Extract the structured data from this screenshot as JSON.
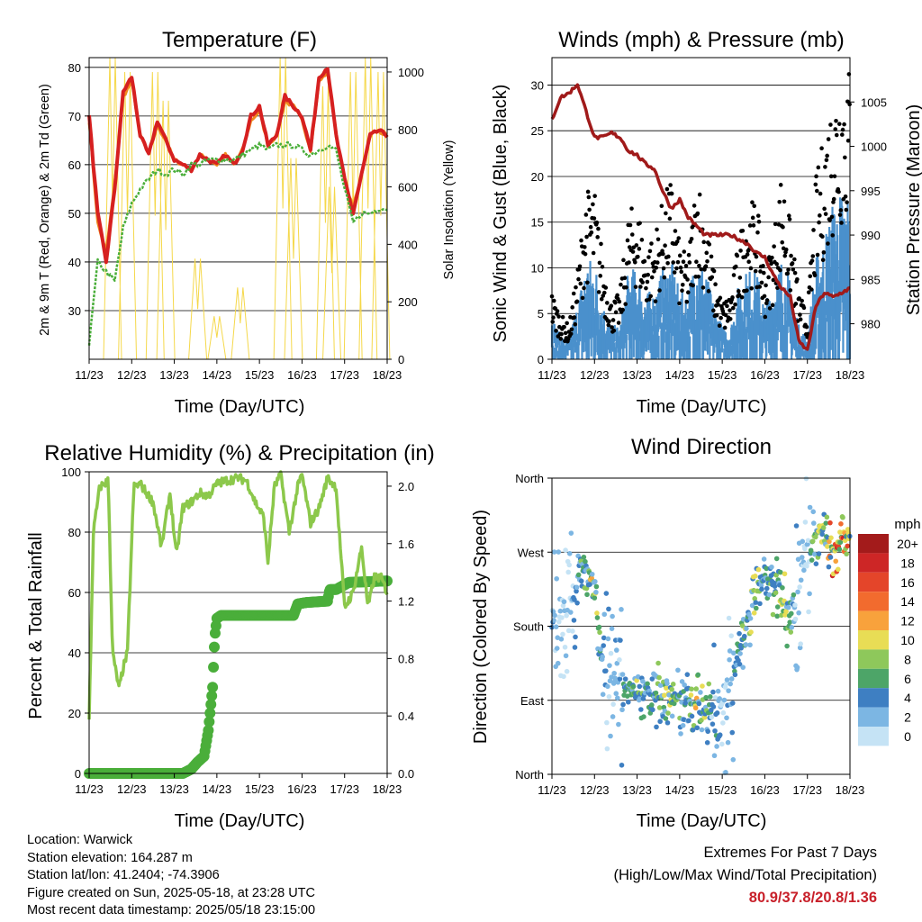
{
  "chart_data": [
    {
      "type": "line",
      "title": "Temperature (F)",
      "xlabel": "Time (Day/UTC)",
      "ylabel": "2m & 9m T (Red, Orange) & 2m Td (Green)",
      "ylabel_right": "Solar Insolation (Yellow)",
      "x_ticks": [
        "11/23",
        "12/23",
        "13/23",
        "14/23",
        "15/23",
        "16/23",
        "17/23",
        "18/23"
      ],
      "ylim": [
        20,
        82
      ],
      "y_ticks": [
        30,
        40,
        50,
        60,
        70,
        80
      ],
      "ylim_right": [
        0,
        1050
      ],
      "y_ticks_right": [
        0,
        200,
        400,
        600,
        800,
        1000
      ],
      "grid": true,
      "x_days": [
        0,
        0.2,
        0.4,
        0.6,
        0.8,
        1.0,
        1.2,
        1.4,
        1.6,
        1.8,
        2.0,
        2.2,
        2.4,
        2.6,
        2.8,
        3.0,
        3.2,
        3.4,
        3.6,
        3.8,
        4.0,
        4.2,
        4.4,
        4.6,
        4.8,
        5.0,
        5.2,
        5.4,
        5.6,
        5.8,
        6.0,
        6.2,
        6.4,
        6.6,
        6.8,
        7.0
      ],
      "series": [
        {
          "name": "2m T",
          "color": "#d62020",
          "values": [
            70,
            50,
            40,
            55,
            75,
            78,
            66,
            62,
            69,
            65,
            61,
            60,
            59,
            62,
            61,
            60,
            62,
            60,
            63,
            70,
            72,
            64,
            66,
            74,
            72,
            70,
            63,
            78,
            80,
            66,
            57,
            50,
            58,
            66,
            67,
            66
          ]
        },
        {
          "name": "9m T",
          "color": "#f08a1e",
          "values": [
            69,
            48,
            42,
            56,
            74,
            77,
            66,
            62,
            68,
            65,
            61,
            60,
            59,
            62,
            61,
            60,
            62,
            60,
            63,
            69,
            71,
            64,
            66,
            73,
            72,
            69,
            63,
            77,
            79,
            66,
            57,
            51,
            58,
            66,
            67,
            66
          ]
        },
        {
          "name": "2m Td",
          "color": "#4aae3a",
          "values": [
            23,
            40,
            38,
            36,
            47,
            52,
            55,
            57,
            59,
            58,
            59,
            58,
            60,
            60,
            61,
            61,
            61,
            61,
            62,
            63,
            64,
            63,
            64,
            64,
            64,
            63,
            62,
            63,
            64,
            63,
            55,
            48,
            50,
            50,
            51,
            51
          ]
        }
      ],
      "solar_series": {
        "name": "Solar Insolation",
        "color": "#f5d84a",
        "peaks": [
          [
            0.55,
            1050
          ],
          [
            0.9,
            1000
          ],
          [
            1.55,
            1000
          ],
          [
            1.8,
            900
          ],
          [
            2.55,
            350
          ],
          [
            3.0,
            150
          ],
          [
            3.55,
            250
          ],
          [
            4.55,
            1050
          ],
          [
            4.8,
            700
          ],
          [
            5.55,
            950
          ],
          [
            5.7,
            600
          ],
          [
            6.2,
            1000
          ],
          [
            6.55,
            1050
          ],
          [
            6.85,
            1000
          ]
        ]
      }
    },
    {
      "type": "scatter",
      "title": "Winds (mph) & Pressure (mb)",
      "xlabel": "Time (Day/UTC)",
      "ylabel": "Sonic Wind & Gust (Blue, Black)",
      "ylabel_right": "Station Pressure (Maroon)",
      "x_ticks": [
        "11/23",
        "12/23",
        "13/23",
        "14/23",
        "15/23",
        "16/23",
        "17/23",
        "18/23"
      ],
      "ylim": [
        0,
        33
      ],
      "y_ticks": [
        0,
        5,
        10,
        15,
        20,
        25,
        30
      ],
      "ylim_right": [
        976,
        1010
      ],
      "y_ticks_right": [
        980,
        985,
        990,
        995,
        1000,
        1005
      ],
      "grid": true,
      "x_days": [
        0,
        0.2,
        0.4,
        0.6,
        0.8,
        1.0,
        1.2,
        1.4,
        1.6,
        1.8,
        2.0,
        2.2,
        2.4,
        2.6,
        2.8,
        3.0,
        3.2,
        3.4,
        3.6,
        3.8,
        4.0,
        4.2,
        4.4,
        4.6,
        4.8,
        5.0,
        5.2,
        5.4,
        5.6,
        5.8,
        6.0,
        6.2,
        6.4,
        6.6,
        6.8,
        7.0
      ],
      "series": [
        {
          "name": "Sonic Wind",
          "color": "#4a90cc",
          "values": [
            4,
            2,
            2,
            5,
            9,
            9,
            5,
            3,
            3,
            8,
            8,
            6,
            6,
            8,
            9,
            6,
            6,
            10,
            8,
            5,
            3,
            3,
            7,
            8,
            8,
            5,
            7,
            9,
            7,
            3,
            2,
            9,
            11,
            14,
            15,
            15
          ]
        },
        {
          "name": "Gust",
          "color": "#000000",
          "values": [
            6,
            4,
            3,
            8,
            15,
            15,
            9,
            5,
            6,
            13,
            14,
            10,
            11,
            14,
            16,
            10,
            9,
            17,
            13,
            8,
            5,
            6,
            11,
            14,
            14,
            8,
            11,
            17,
            12,
            6,
            4,
            16,
            20,
            24,
            26,
            26
          ]
        },
        {
          "name": "Station Pressure",
          "color": "#a01a1a",
          "values": [
            1003,
            1005.5,
            1006,
            1007,
            1004,
            1001,
            1001,
            1001.5,
            1001,
            999.5,
            999,
            998,
            997.5,
            995,
            993,
            994,
            992,
            991,
            990,
            990,
            990,
            990,
            989.5,
            989,
            988,
            987.5,
            985.5,
            984,
            983,
            978,
            977,
            982,
            983.5,
            983,
            983.5,
            984
          ]
        }
      ]
    },
    {
      "type": "line",
      "title": "Relative Humidity (%) & Precipitation (in)",
      "xlabel": "Time (Day/UTC)",
      "ylabel": "Percent & Total Rainfall",
      "x_ticks": [
        "11/23",
        "12/23",
        "13/23",
        "14/23",
        "15/23",
        "16/23",
        "17/23",
        "18/23"
      ],
      "ylim": [
        0,
        100
      ],
      "y_ticks": [
        0,
        20,
        40,
        60,
        80,
        100
      ],
      "ylim_right": [
        0,
        2.1
      ],
      "y_ticks_right": [
        "0.0",
        "0.4",
        "0.8",
        "1.2",
        "1.6",
        "2.0"
      ],
      "grid": true,
      "x_days": [
        0,
        0.1,
        0.25,
        0.45,
        0.55,
        0.7,
        0.8,
        0.9,
        1.05,
        1.2,
        1.4,
        1.5,
        1.7,
        1.9,
        2.05,
        2.2,
        2.4,
        2.6,
        2.8,
        3.0,
        3.2,
        3.5,
        3.7,
        3.9,
        4.1,
        4.2,
        4.35,
        4.5,
        4.7,
        4.9,
        5.0,
        5.2,
        5.4,
        5.6,
        5.8,
        6.0,
        6.2,
        6.4,
        6.55,
        6.7,
        6.85,
        7.0
      ],
      "series": [
        {
          "name": "Relative Humidity",
          "color": "#8cc84b",
          "values": [
            17,
            80,
            95,
            97,
            40,
            28,
            35,
            40,
            95,
            96,
            92,
            90,
            75,
            93,
            72,
            88,
            90,
            93,
            92,
            96,
            97,
            98,
            97,
            90,
            85,
            70,
            95,
            99,
            80,
            95,
            99,
            83,
            88,
            98,
            95,
            55,
            60,
            75,
            55,
            65,
            65,
            60
          ]
        },
        {
          "name": "Total Rainfall",
          "color": "#4aae3a",
          "steps": [
            [
              0,
              0
            ],
            [
              2.2,
              0
            ],
            [
              2.4,
              0.03
            ],
            [
              2.55,
              0.08
            ],
            [
              2.7,
              0.12
            ],
            [
              2.8,
              0.3
            ],
            [
              2.9,
              0.6
            ],
            [
              2.95,
              0.95
            ],
            [
              3.0,
              1.08
            ],
            [
              3.1,
              1.1
            ],
            [
              4.8,
              1.1
            ],
            [
              4.9,
              1.18
            ],
            [
              5.1,
              1.19
            ],
            [
              5.6,
              1.2
            ],
            [
              5.65,
              1.28
            ],
            [
              5.8,
              1.28
            ],
            [
              6.1,
              1.33
            ],
            [
              7.0,
              1.34
            ]
          ]
        }
      ]
    },
    {
      "type": "scatter",
      "title": "Wind Direction",
      "xlabel": "Time (Day/UTC)",
      "ylabel": "Direction (Colored By Speed)",
      "x_ticks": [
        "11/23",
        "12/23",
        "13/23",
        "14/23",
        "15/23",
        "16/23",
        "17/23",
        "18/23"
      ],
      "y_ticks": [
        "North",
        "East",
        "South",
        "West",
        "North"
      ],
      "ylim": [
        0,
        360
      ],
      "grid": true,
      "colorbar": {
        "title": "mph",
        "labels": [
          "20+",
          "18",
          "16",
          "14",
          "12",
          "10",
          "8",
          "6",
          "4",
          "2",
          "0"
        ],
        "colors": [
          "#a31b1b",
          "#cd2626",
          "#e4452a",
          "#f26b2e",
          "#f8a23c",
          "#e8dd55",
          "#8ec85b",
          "#4da568",
          "#3e7fc2",
          "#7cb6e3",
          "#c5e3f5"
        ]
      }
    }
  ],
  "info": {
    "location": "Location: Warwick",
    "elevation": "Station elevation: 164.287 m",
    "latlon": "Station lat/lon: 41.2404; -74.3906",
    "created": "Figure created on Sun, 2025-05-18, at 23:28 UTC",
    "latest": "Most recent data timestamp: 2025/05/18 23:15:00"
  },
  "extremes": {
    "title": "Extremes For Past 7 Days",
    "subtitle": "(High/Low/Max Wind/Total Precipitation)",
    "values": "80.9/37.8/20.8/1.36"
  }
}
